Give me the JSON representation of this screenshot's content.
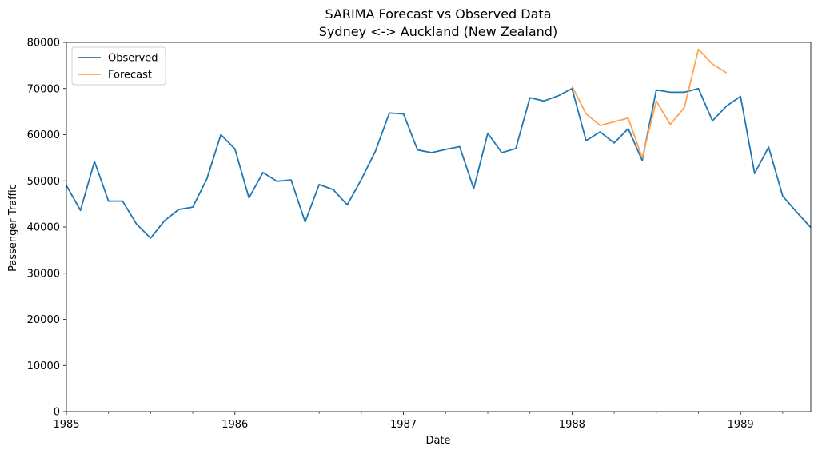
{
  "chart_data": {
    "type": "line",
    "title": "SARIMA Forecast vs Observed Data",
    "subtitle": "Sydney <-> Auckland (New Zealand)",
    "xlabel": "Date",
    "ylabel": "Passenger Traffic",
    "xlim": [
      "1985-01",
      "1989-06"
    ],
    "ylim": [
      0,
      80000
    ],
    "y_ticks": [
      0,
      10000,
      20000,
      30000,
      40000,
      50000,
      60000,
      70000,
      80000
    ],
    "x_ticks": [
      "1985",
      "1986",
      "1987",
      "1988",
      "1989"
    ],
    "grid": false,
    "legend": "top-left",
    "series": [
      {
        "name": "Observed",
        "color": "#1f77b4",
        "x": [
          "1985-01",
          "1985-02",
          "1985-03",
          "1985-04",
          "1985-05",
          "1985-06",
          "1985-07",
          "1985-08",
          "1985-09",
          "1985-10",
          "1985-11",
          "1985-12",
          "1986-01",
          "1986-02",
          "1986-03",
          "1986-04",
          "1986-05",
          "1986-06",
          "1986-07",
          "1986-08",
          "1986-09",
          "1986-10",
          "1986-11",
          "1986-12",
          "1987-01",
          "1987-02",
          "1987-03",
          "1987-04",
          "1987-05",
          "1987-06",
          "1987-07",
          "1987-08",
          "1987-09",
          "1987-10",
          "1987-11",
          "1987-12",
          "1988-01",
          "1988-02",
          "1988-03",
          "1988-04",
          "1988-05",
          "1988-06",
          "1988-07",
          "1988-08",
          "1988-09",
          "1988-10",
          "1988-11",
          "1988-12",
          "1989-01",
          "1989-02",
          "1989-03",
          "1989-04",
          "1989-05",
          "1989-06"
        ],
        "values": [
          49000,
          43600,
          54200,
          45600,
          45600,
          40600,
          37600,
          41400,
          43800,
          44300,
          50400,
          60000,
          56900,
          46300,
          51800,
          49900,
          50200,
          41100,
          49200,
          48100,
          44800,
          50300,
          56400,
          64700,
          64500,
          56700,
          56100,
          56800,
          57400,
          48300,
          60300,
          56100,
          57000,
          68000,
          67300,
          68400,
          70000,
          58700,
          60600,
          58200,
          61300,
          54400,
          69700,
          69200,
          69200,
          70000,
          63000,
          66200,
          68300,
          51600,
          57300,
          46700,
          43200,
          39900
        ]
      },
      {
        "name": "Forecast",
        "color": "#ffa34f",
        "x": [
          "1988-01",
          "1988-02",
          "1988-03",
          "1988-04",
          "1988-05",
          "1988-06",
          "1988-07",
          "1988-08",
          "1988-09",
          "1988-10",
          "1988-11",
          "1988-12"
        ],
        "values": [
          70500,
          64500,
          62000,
          62800,
          63600,
          55000,
          67300,
          62200,
          65900,
          78500,
          75300,
          73400
        ]
      }
    ]
  }
}
